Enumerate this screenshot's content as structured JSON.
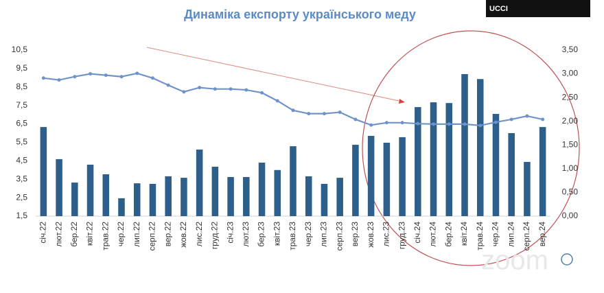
{
  "video_tile": "UCCI",
  "chart_data": {
    "type": "bar",
    "title": "Динаміка експорту українського меду",
    "categories": [
      "січ.22",
      "лют.22",
      "бер.22",
      "квіт.22",
      "трав.22",
      "чер.22",
      "лип.22",
      "серп.22",
      "вер.22",
      "жов.22",
      "лис.22",
      "груд.22",
      "січ.23",
      "лют.23",
      "бер.23",
      "квіт.23",
      "трав.23",
      "чер.23",
      "лип.23",
      "серп.23",
      "вер.23",
      "жов.23",
      "лис.23",
      "груд.23",
      "січ.24",
      "лют.24",
      "бер.24",
      "квіт.24",
      "трав.24",
      "чер.24",
      "лип.24",
      "серп.24",
      "вер.24"
    ],
    "series": [
      {
        "type": "bar",
        "color": "#2e5f8a",
        "values": [
          6.33,
          4.59,
          3.32,
          4.29,
          3.77,
          2.47,
          3.28,
          3.25,
          3.66,
          3.58,
          5.11,
          4.18,
          3.62,
          3.62,
          4.4,
          4.0,
          5.29,
          3.66,
          3.25,
          3.58,
          5.37,
          5.85,
          5.48,
          5.78,
          7.41,
          7.67,
          7.63,
          9.2,
          8.93,
          7.04,
          6.0,
          4.44,
          6.33
        ]
      },
      {
        "type": "line",
        "axis": "y2",
        "color": "#6f93c9",
        "values": [
          2.91,
          2.87,
          2.94,
          3.0,
          2.97,
          2.94,
          3.01,
          2.91,
          2.76,
          2.62,
          2.71,
          2.68,
          2.68,
          2.66,
          2.6,
          2.43,
          2.23,
          2.16,
          2.16,
          2.19,
          2.04,
          1.92,
          1.97,
          1.97,
          1.95,
          1.94,
          1.94,
          1.94,
          1.91,
          1.98,
          2.04,
          2.11,
          2.04
        ]
      }
    ],
    "ylim": [
      1.5,
      10.5
    ],
    "yticks": [
      {
        "value": 1.5,
        "label": "1,5"
      },
      {
        "value": 2.5,
        "label": "2,5"
      },
      {
        "value": 3.5,
        "label": "3,5"
      },
      {
        "value": 4.5,
        "label": "4,5"
      },
      {
        "value": 5.5,
        "label": "5,5"
      },
      {
        "value": 6.5,
        "label": "6,5"
      },
      {
        "value": 7.5,
        "label": "7,5"
      },
      {
        "value": 8.5,
        "label": "8,5"
      },
      {
        "value": 9.5,
        "label": "9,5"
      },
      {
        "value": 10.5,
        "label": "10,5"
      }
    ],
    "y2lim": [
      0,
      3.5
    ],
    "y2ticks": [
      {
        "value": 0,
        "label": "0,00"
      },
      {
        "value": 0.5,
        "label": "0,50"
      },
      {
        "value": 1,
        "label": "1,00"
      },
      {
        "value": 1.5,
        "label": "1,50"
      },
      {
        "value": 2,
        "label": "2,00"
      },
      {
        "value": 2.5,
        "label": "2,50"
      },
      {
        "value": 3,
        "label": "3,00"
      },
      {
        "value": 3.5,
        "label": "3,50"
      }
    ]
  }
}
